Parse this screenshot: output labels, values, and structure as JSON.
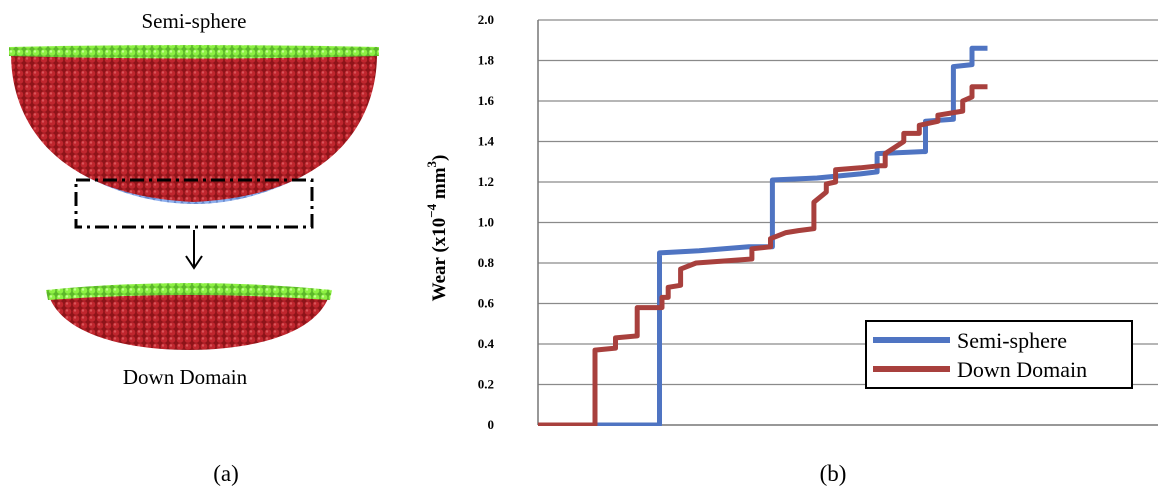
{
  "panel_a": {
    "top_label": "Semi-sphere",
    "bottom_label": "Down Domain",
    "caption": "(a)",
    "colors": {
      "bulk": "#b01e26",
      "surface": "#7fe23a",
      "contact": "#7fa2e6"
    }
  },
  "panel_b": {
    "caption": "(b)",
    "ylabel_prefix": "Wear (x10",
    "ylabel_exp1": "−4",
    "ylabel_unit": " mm",
    "ylabel_exp2": "3",
    "ylabel_suffix": ")"
  },
  "chart_data": {
    "type": "line",
    "ylabel": "Wear (x10^-4 mm^3)",
    "xlabel": "",
    "ylim": [
      0,
      2.0
    ],
    "y_ticks": [
      "0",
      "0.2",
      "0.4",
      "0.6",
      "0.8",
      "1.0",
      "1.2",
      "1.4",
      "1.6",
      "1.8",
      "2.0"
    ],
    "xlim": [
      0,
      1
    ],
    "grid": true,
    "legend_position": "bottom-right",
    "series": [
      {
        "name": "Semi-sphere",
        "color": "#4f74c2",
        "points": [
          [
            0.0,
            0.0
          ],
          [
            0.196,
            0.0
          ],
          [
            0.196,
            0.85
          ],
          [
            0.26,
            0.86
          ],
          [
            0.3,
            0.87
          ],
          [
            0.34,
            0.88
          ],
          [
            0.378,
            0.88
          ],
          [
            0.378,
            1.21
          ],
          [
            0.45,
            1.22
          ],
          [
            0.52,
            1.24
          ],
          [
            0.547,
            1.25
          ],
          [
            0.547,
            1.34
          ],
          [
            0.62,
            1.35
          ],
          [
            0.625,
            1.35
          ],
          [
            0.625,
            1.5
          ],
          [
            0.67,
            1.51
          ],
          [
            0.67,
            1.77
          ],
          [
            0.7,
            1.78
          ],
          [
            0.7,
            1.86
          ],
          [
            0.725,
            1.86
          ]
        ]
      },
      {
        "name": "Down Domain",
        "color": "#a8403d",
        "points": [
          [
            0.0,
            0.0
          ],
          [
            0.092,
            0.0
          ],
          [
            0.092,
            0.37
          ],
          [
            0.125,
            0.38
          ],
          [
            0.125,
            0.43
          ],
          [
            0.16,
            0.44
          ],
          [
            0.16,
            0.58
          ],
          [
            0.2,
            0.58
          ],
          [
            0.2,
            0.63
          ],
          [
            0.21,
            0.63
          ],
          [
            0.21,
            0.68
          ],
          [
            0.23,
            0.69
          ],
          [
            0.23,
            0.77
          ],
          [
            0.255,
            0.8
          ],
          [
            0.3,
            0.81
          ],
          [
            0.345,
            0.82
          ],
          [
            0.345,
            0.87
          ],
          [
            0.375,
            0.88
          ],
          [
            0.375,
            0.92
          ],
          [
            0.4,
            0.95
          ],
          [
            0.42,
            0.96
          ],
          [
            0.445,
            0.97
          ],
          [
            0.445,
            1.1
          ],
          [
            0.465,
            1.15
          ],
          [
            0.465,
            1.19
          ],
          [
            0.48,
            1.2
          ],
          [
            0.48,
            1.26
          ],
          [
            0.52,
            1.27
          ],
          [
            0.55,
            1.28
          ],
          [
            0.56,
            1.28
          ],
          [
            0.56,
            1.34
          ],
          [
            0.59,
            1.4
          ],
          [
            0.59,
            1.44
          ],
          [
            0.615,
            1.44
          ],
          [
            0.615,
            1.48
          ],
          [
            0.645,
            1.5
          ],
          [
            0.645,
            1.53
          ],
          [
            0.685,
            1.55
          ],
          [
            0.685,
            1.6
          ],
          [
            0.7,
            1.62
          ],
          [
            0.7,
            1.67
          ],
          [
            0.725,
            1.67
          ]
        ]
      }
    ]
  }
}
